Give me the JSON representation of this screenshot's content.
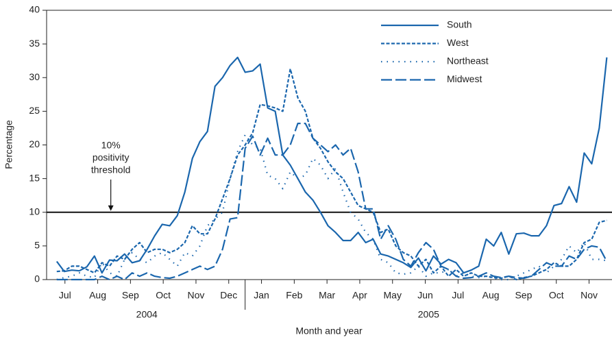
{
  "chart_data": {
    "type": "line",
    "y_label": "Percentage",
    "x_label": "Month and year",
    "xlim": [
      -0.06,
      17.2
    ],
    "ylim": [
      0,
      40
    ],
    "yticks": [
      0,
      5,
      10,
      15,
      20,
      25,
      30,
      35,
      40
    ],
    "xticks": [
      {
        "value": 0.5,
        "label": "Jul"
      },
      {
        "value": 1.5,
        "label": "Aug"
      },
      {
        "value": 2.5,
        "label": "Sep"
      },
      {
        "value": 3.5,
        "label": "Oct"
      },
      {
        "value": 4.5,
        "label": "Nov"
      },
      {
        "value": 5.5,
        "label": "Dec"
      },
      {
        "value": 6.5,
        "label": "Jan"
      },
      {
        "value": 7.5,
        "label": "Feb"
      },
      {
        "value": 8.5,
        "label": "Mar"
      },
      {
        "value": 9.5,
        "label": "Apr"
      },
      {
        "value": 10.5,
        "label": "May"
      },
      {
        "value": 11.5,
        "label": "Jun"
      },
      {
        "value": 12.5,
        "label": "Jul"
      },
      {
        "value": 13.5,
        "label": "Aug"
      },
      {
        "value": 14.5,
        "label": "Sep"
      },
      {
        "value": 15.5,
        "label": "Oct"
      },
      {
        "value": 16.5,
        "label": "Nov"
      }
    ],
    "year_groups": [
      {
        "label": "2004",
        "start": 0,
        "end": 6
      },
      {
        "label": "2005",
        "start": 6,
        "end": 17.2
      }
    ],
    "threshold": {
      "value": 10,
      "x": 1.9,
      "text_lines": [
        "10%",
        "positivity",
        "threshold"
      ]
    },
    "legend_position": "upper right",
    "x": [
      0.25,
      0.48,
      0.71,
      0.94,
      1.17,
      1.4,
      1.63,
      1.86,
      2.09,
      2.32,
      2.55,
      2.78,
      3.01,
      3.24,
      3.47,
      3.7,
      3.93,
      4.16,
      4.39,
      4.62,
      4.85,
      5.08,
      5.31,
      5.54,
      5.77,
      6,
      6.23,
      6.46,
      6.69,
      6.92,
      7.15,
      7.38,
      7.61,
      7.84,
      8.07,
      8.3,
      8.53,
      8.76,
      8.99,
      9.22,
      9.45,
      9.68,
      9.91,
      10.14,
      10.37,
      10.6,
      10.83,
      11.06,
      11.29,
      11.52,
      11.75,
      11.98,
      12.21,
      12.44,
      12.67,
      12.9,
      13.13,
      13.36,
      13.59,
      13.82,
      14.05,
      14.28,
      14.51,
      14.74,
      14.97,
      15.2,
      15.43,
      15.66,
      15.89,
      16.12,
      16.35,
      16.58,
      16.81,
      17.04
    ],
    "series": [
      {
        "name": "South",
        "color": "#1a66ad",
        "dash": "solid",
        "values": [
          2.7,
          1.2,
          1.4,
          1.3,
          1.9,
          3.5,
          1.0,
          2.9,
          2.8,
          3.8,
          2.5,
          2.8,
          4.5,
          6.5,
          8.2,
          8.0,
          9.5,
          13,
          18,
          20.5,
          22,
          28.7,
          30,
          31.8,
          33,
          30.8,
          31,
          32,
          25.5,
          25,
          18.5,
          17,
          15,
          13,
          11.8,
          10,
          8,
          7,
          5.8,
          5.8,
          7,
          5.5,
          6,
          3.8,
          3.5,
          3,
          2.5,
          1.8,
          3.2,
          1.3,
          3.5,
          2.3,
          3,
          2.5,
          1,
          1.4,
          2,
          6,
          5,
          7,
          3.8,
          6.8,
          6.9,
          6.5,
          6.5,
          8,
          11,
          11.3,
          13.8,
          11.5,
          18.8,
          17.2,
          22.5,
          33
        ]
      },
      {
        "name": "West",
        "color": "#1a66ad",
        "dash": "dash",
        "values": [
          1.2,
          1.3,
          2,
          2,
          1.5,
          1,
          2.5,
          2,
          3.5,
          3,
          4.5,
          5.5,
          4,
          4.5,
          4.5,
          4,
          4.5,
          5.5,
          8,
          6.8,
          6.8,
          9,
          12,
          15,
          18.5,
          20,
          21.8,
          26,
          25.8,
          25.5,
          25,
          31.3,
          27,
          25,
          21,
          19.5,
          17.5,
          16,
          15,
          13,
          11,
          10.5,
          10,
          7,
          7.5,
          5,
          4,
          3.5,
          2,
          3,
          1,
          2,
          0.5,
          1.5,
          0.5,
          1,
          0.5,
          0.5,
          0.3,
          0.2,
          0.5,
          0,
          0.3,
          0.5,
          1,
          1.5,
          2.5,
          2,
          2,
          3,
          5.5,
          6,
          8.5,
          8.8
        ]
      },
      {
        "name": "Northeast",
        "color": "#1a66ad",
        "dash": "dot",
        "values": [
          0,
          0.3,
          0.5,
          1,
          0.5,
          0.3,
          2.5,
          1,
          0.5,
          3,
          4,
          3,
          2.5,
          3.5,
          4,
          3,
          2,
          4,
          3.5,
          5,
          8,
          9,
          10,
          15,
          19,
          21.5,
          20,
          19.5,
          15.5,
          15,
          13.5,
          16,
          15,
          15.5,
          18,
          17,
          15,
          16.5,
          13,
          10,
          9,
          7,
          6,
          3,
          2.5,
          1,
          0.8,
          1,
          2,
          0.5,
          1,
          1,
          1.5,
          0.5,
          1,
          0.5,
          0.3,
          0.5,
          0.2,
          0,
          0,
          0.5,
          1,
          1.5,
          2,
          1,
          2,
          3,
          5,
          4,
          5.5,
          3,
          3,
          2.8
        ]
      },
      {
        "name": "Midwest",
        "color": "#1a66ad",
        "dash": "longdash",
        "values": [
          0,
          0,
          0,
          0,
          0,
          0,
          0.5,
          0,
          0.5,
          0,
          1,
          0.5,
          1,
          0.5,
          0.3,
          0.2,
          0.5,
          1,
          1.5,
          2,
          1.5,
          2,
          4.5,
          9,
          9.2,
          19.5,
          21.3,
          18.5,
          21,
          18.5,
          18.5,
          20,
          23.2,
          23.2,
          21,
          20,
          19,
          20,
          18.5,
          19.5,
          16,
          10.5,
          10.5,
          6,
          8,
          6,
          3,
          2,
          4,
          5.5,
          4.5,
          2,
          1.5,
          0.5,
          0.2,
          0.3,
          0.5,
          1,
          0.5,
          0.3,
          0.5,
          0.3,
          0.2,
          0.5,
          1.5,
          2.5,
          2,
          2,
          3.5,
          3,
          4.5,
          5,
          4.8,
          2.7
        ]
      }
    ]
  }
}
